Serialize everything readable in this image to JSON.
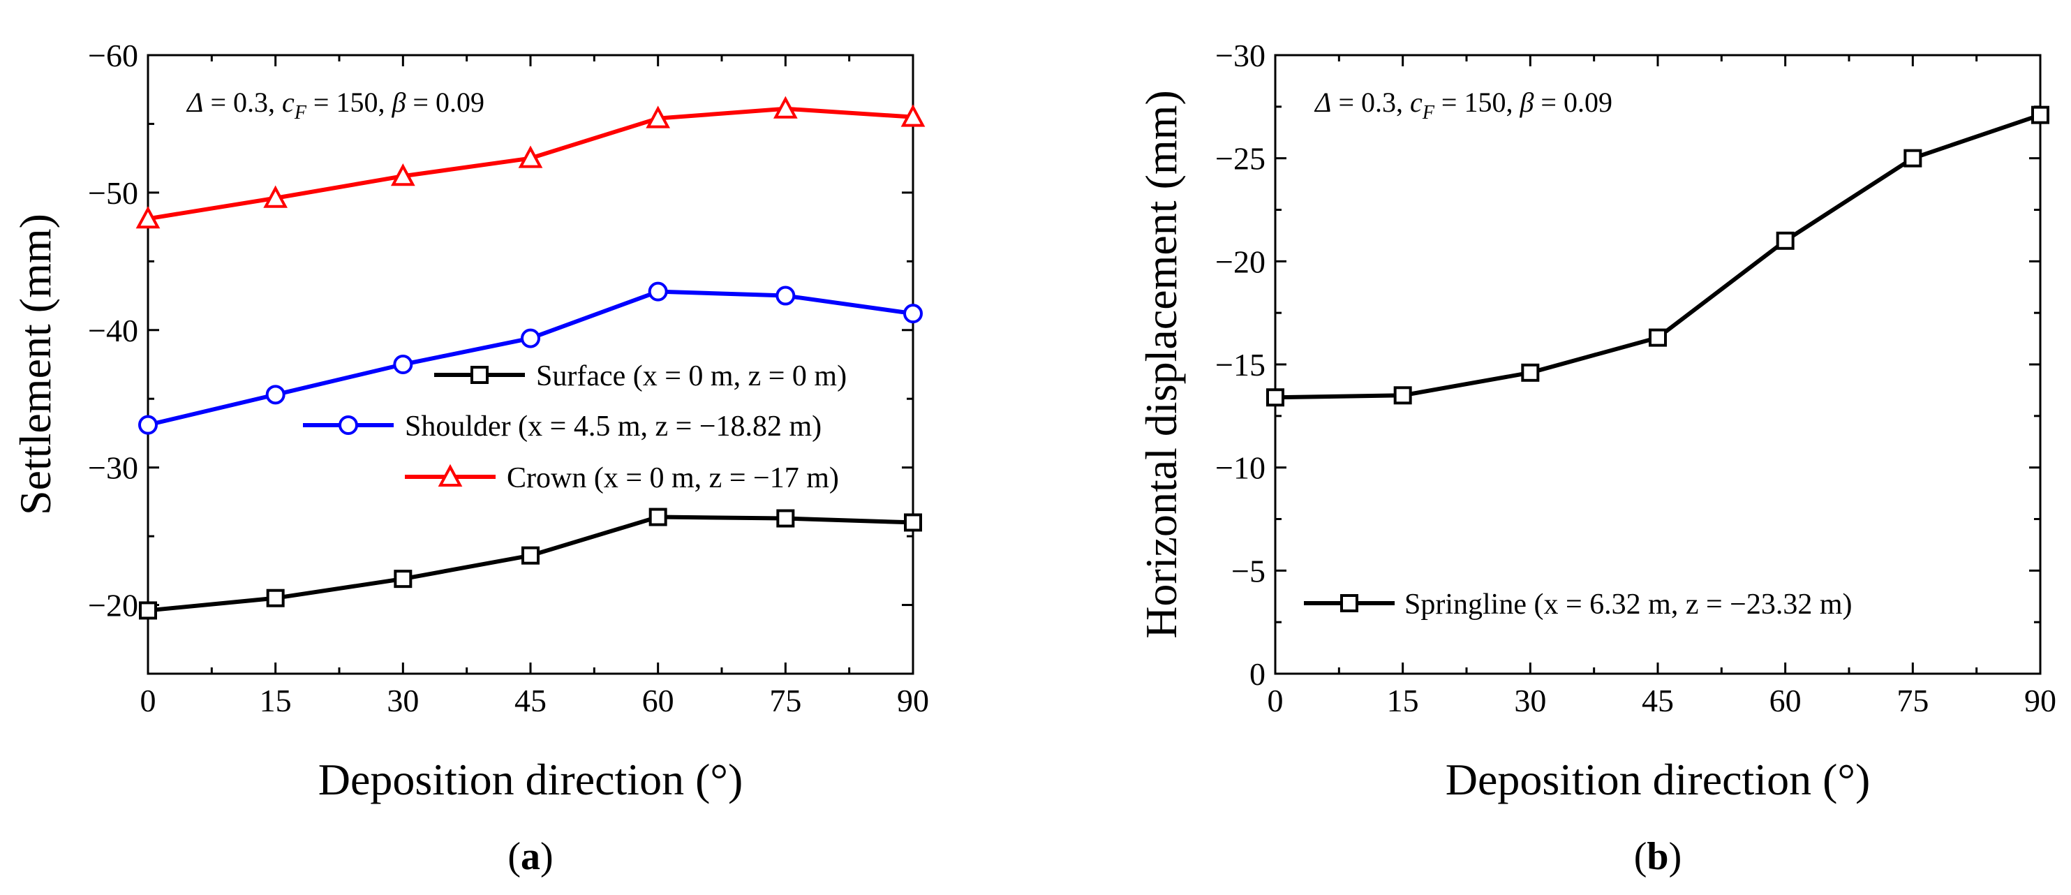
{
  "chart_data": [
    {
      "type": "line",
      "panel_label": {
        "open": "(",
        "letter": "a",
        "close": ")"
      },
      "annotation": {
        "delta_sym": "Δ",
        "delta_val": " = 0.3, ",
        "cf_sym": "c",
        "cf_sub": "F",
        "cf_val": " = 150, ",
        "beta_sym": "β",
        "beta_val": " = 0.09"
      },
      "xlabel": "Deposition direction (°)",
      "ylabel": "Settlement (mm)",
      "xlim": [
        0,
        90
      ],
      "ylim": [
        -15,
        -60
      ],
      "xticks": [
        0,
        15,
        30,
        45,
        60,
        75,
        90
      ],
      "xtick_labels": [
        "0",
        "15",
        "30",
        "45",
        "60",
        "75",
        "90"
      ],
      "yticks": [
        -20,
        -30,
        -40,
        -50,
        -60
      ],
      "ytick_labels": [
        "−20",
        "−30",
        "−40",
        "−50",
        "−60"
      ],
      "legend_placement": "center-right",
      "x": [
        0,
        15,
        30,
        45,
        60,
        75,
        90
      ],
      "series": [
        {
          "name": "Surface (x = 0 m, z = 0 m)",
          "marker": "square",
          "color": "#000000",
          "values": [
            -19.6,
            -20.5,
            -21.9,
            -23.6,
            -26.4,
            -26.3,
            -26.0
          ]
        },
        {
          "name": "Shoulder (x = 4.5 m, z = −18.82 m)",
          "marker": "circle",
          "color": "#0000ff",
          "values": [
            -33.1,
            -35.3,
            -37.5,
            -39.4,
            -42.8,
            -42.5,
            -41.2
          ]
        },
        {
          "name": "Crown (x = 0 m, z = −17 m)",
          "marker": "triangle",
          "color": "#ff0000",
          "values": [
            -48.1,
            -49.6,
            -51.2,
            -52.5,
            -55.4,
            -56.1,
            -55.5
          ]
        }
      ]
    },
    {
      "type": "line",
      "panel_label": {
        "open": "(",
        "letter": "b",
        "close": ")"
      },
      "annotation": {
        "delta_sym": "Δ",
        "delta_val": " = 0.3, ",
        "cf_sym": "c",
        "cf_sub": "F",
        "cf_val": " = 150, ",
        "beta_sym": "β",
        "beta_val": " = 0.09"
      },
      "xlabel": "Deposition direction (°)",
      "ylabel": "Horizontal displacement (mm)",
      "xlim": [
        0,
        90
      ],
      "ylim": [
        0,
        -30
      ],
      "xticks": [
        0,
        15,
        30,
        45,
        60,
        75,
        90
      ],
      "xtick_labels": [
        "0",
        "15",
        "30",
        "45",
        "60",
        "75",
        "90"
      ],
      "yticks": [
        0,
        -5,
        -10,
        -15,
        -20,
        -25,
        -30
      ],
      "ytick_labels": [
        "0",
        "−5",
        "−10",
        "−15",
        "−20",
        "−25",
        "−30"
      ],
      "legend_placement": "lower-left",
      "x": [
        0,
        15,
        30,
        45,
        60,
        75,
        90
      ],
      "series": [
        {
          "name": "Springline (x = 6.32 m, z = −23.32 m)",
          "marker": "square",
          "color": "#000000",
          "values": [
            -13.4,
            -13.5,
            -14.6,
            -16.3,
            -21.0,
            -25.0,
            -27.1
          ]
        }
      ]
    }
  ]
}
